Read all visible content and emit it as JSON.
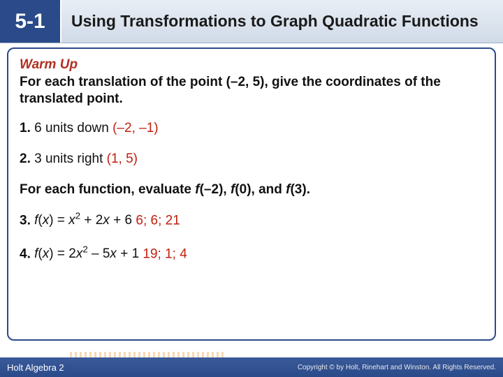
{
  "header": {
    "section_number": "5-1",
    "title": "Using Transformations to Graph Quadratic Functions"
  },
  "warmup_label": "Warm Up",
  "prompt1": "For each translation of the point (–2, 5), give the coordinates of the translated point.",
  "q1": {
    "num": "1.",
    "text": " 6 units down ",
    "answer": "(–2, –1)"
  },
  "q2": {
    "num": "2.",
    "text": " 3 units right  ",
    "answer": "(1, 5)"
  },
  "prompt2_pre": "For each function, evaluate ",
  "prompt2_f1": "f",
  "prompt2_mid1": "(–2), ",
  "prompt2_f2": "f",
  "prompt2_mid2": "(0), and ",
  "prompt2_f3": "f",
  "prompt2_end": "(3).",
  "q3": {
    "num": "3.",
    "fx": "f",
    "open": "(",
    "x": "x",
    "close": ") = ",
    "x2": "x",
    "sup": "2",
    "rest": " + 2",
    "xrest": "x",
    "tail": " + 6 ",
    "answer": "6; 6; 21"
  },
  "q4": {
    "num": "4.",
    "fx": "f",
    "open": "(",
    "x": "x",
    "close": ") = 2",
    "x2": "x",
    "sup": "2",
    "rest": " – 5",
    "xrest": "x",
    "tail": " + 1 ",
    "answer": "19; 1; 4"
  },
  "footer": {
    "left": "Holt Algebra 2",
    "right": "Copyright © by Holt, Rinehart and Winston. All Rights Reserved."
  },
  "colors": {
    "header_bg": "#2a4a8a",
    "answer": "#c02010",
    "warmup": "#b03020"
  }
}
